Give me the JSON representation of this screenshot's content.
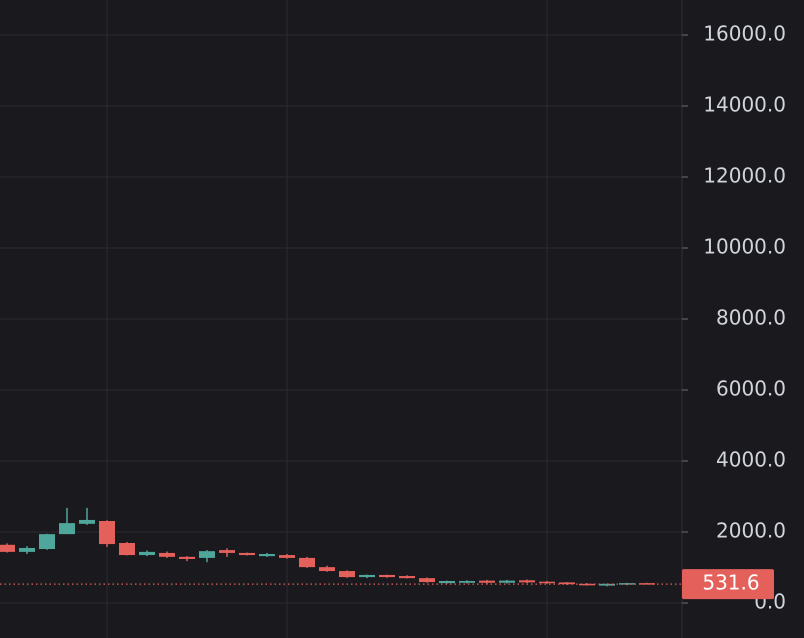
{
  "chart_data": {
    "type": "candlestick",
    "categories": [
      null,
      null,
      null,
      null,
      null,
      null,
      null,
      null,
      null,
      null,
      null,
      null,
      null,
      null,
      null,
      null,
      null,
      null,
      null,
      null,
      null,
      null,
      null,
      null,
      null,
      null,
      null,
      null,
      null,
      null,
      null,
      null,
      null
    ],
    "series": [
      {
        "open": [
          1640,
          1440,
          1520,
          1940,
          2230,
          2310,
          1690,
          1350,
          1410,
          1300,
          1270,
          1490,
          1410,
          1320,
          1350,
          1270,
          1010,
          900,
          730,
          790,
          760,
          700,
          560,
          570,
          630,
          570,
          640,
          600,
          580,
          540,
          490,
          520,
          560
        ],
        "high": [
          1680,
          1600,
          1950,
          2680,
          2680,
          2330,
          1720,
          1480,
          1450,
          1320,
          1490,
          1540,
          1420,
          1410,
          1380,
          1300,
          1050,
          920,
          800,
          800,
          780,
          720,
          630,
          640,
          650,
          650,
          660,
          620,
          590,
          560,
          550,
          570,
          570
        ],
        "low": [
          1420,
          1380,
          1500,
          1940,
          2200,
          1580,
          1340,
          1320,
          1270,
          1180,
          1150,
          1300,
          1340,
          1300,
          1250,
          990,
          880,
          710,
          700,
          710,
          690,
          570,
          550,
          550,
          550,
          550,
          560,
          540,
          510,
          490,
          470,
          500,
          520
        ],
        "close": [
          1440,
          1550,
          1940,
          2250,
          2340,
          1660,
          1350,
          1440,
          1300,
          1240,
          1460,
          1410,
          1350,
          1380,
          1270,
          1010,
          900,
          730,
          790,
          730,
          700,
          590,
          620,
          620,
          570,
          630,
          580,
          560,
          530,
          500,
          540,
          560,
          531.6
        ]
      }
    ],
    "up_color": "#4fa79b",
    "down_color": "#e3605b",
    "last_price": 531.6,
    "ylim": [
      -986,
      16986
    ],
    "yticks": [
      {
        "value": 0,
        "label": "0.0"
      },
      {
        "value": 2000,
        "label": "2000.0"
      },
      {
        "value": 4000,
        "label": "4000.0"
      },
      {
        "value": 6000,
        "label": "6000.0"
      },
      {
        "value": 8000,
        "label": "8000.0"
      },
      {
        "value": 10000,
        "label": "10000.0"
      },
      {
        "value": 12000,
        "label": "12000.0"
      },
      {
        "value": 14000,
        "label": "14000.0"
      },
      {
        "value": 16000,
        "label": "16000.0"
      }
    ],
    "grid": true
  }
}
